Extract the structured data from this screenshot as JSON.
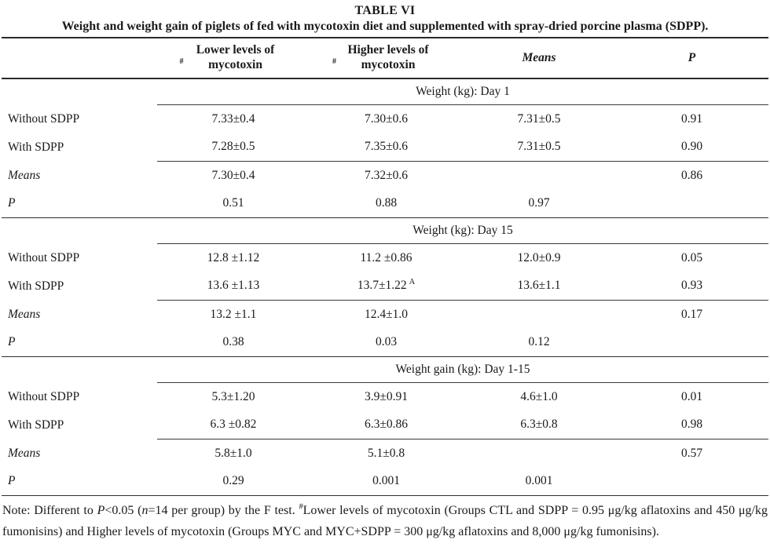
{
  "page": {
    "title": "TABLE VI",
    "subtitle": "Weight and weight gain of piglets of fed with mycotoxin diet and supplemented with spray-dried porcine plasma (SDPP)."
  },
  "header": {
    "hash": "#",
    "col_lower": "Lower levels of mycotoxin",
    "col_higher": "Higher levels of mycotoxin",
    "col_means": "Means",
    "col_p": "P"
  },
  "sections": [
    {
      "header": "Weight (kg): Day 1",
      "rows": [
        {
          "label": "Without SDPP",
          "cells": [
            "7.33±0.4",
            "7.30±0.6",
            "7.31±0.5",
            "0.91"
          ]
        },
        {
          "label": "With SDPP",
          "cells": [
            "7.28±0.5",
            "7.35±0.6",
            "7.31±0.5",
            "0.90"
          ]
        },
        {
          "label": "Means",
          "cells": [
            "7.30±0.4",
            "7.32±0.6",
            "",
            "0.86"
          ]
        },
        {
          "label": "P",
          "cells": [
            "0.51",
            "0.88",
            "0.97",
            ""
          ]
        }
      ]
    },
    {
      "header": "Weight (kg): Day 15",
      "rows": [
        {
          "label": "Without SDPP",
          "cells": [
            "12.8 ±1.12",
            "11.2 ±0.86",
            "12.0±0.9",
            "0.05"
          ]
        },
        {
          "label": "With SDPP",
          "cells": [
            "13.6 ±1.13",
            "13.7±1.22",
            "13.6±1.1",
            "0.93"
          ],
          "sup": "A"
        },
        {
          "label": "Means",
          "cells": [
            "13.2 ±1.1",
            "12.4±1.0",
            "",
            "0.17"
          ]
        },
        {
          "label": "P",
          "cells": [
            "0.38",
            "0.03",
            "0.12",
            ""
          ]
        }
      ]
    },
    {
      "header": "Weight gain (kg): Day 1-15",
      "rows": [
        {
          "label": "Without SDPP",
          "cells": [
            "5.3±1.20",
            "3.9±0.91",
            "4.6±1.0",
            "0.01"
          ]
        },
        {
          "label": "With SDPP",
          "cells": [
            "6.3 ±0.82",
            "6.3±0.86",
            "6.3±0.8",
            "0.98"
          ]
        },
        {
          "label": "Means",
          "cells": [
            "5.8±1.0",
            "5.1±0.8",
            "",
            "0.57"
          ]
        },
        {
          "label": "P",
          "cells": [
            "0.29",
            "0.001",
            "0.001",
            ""
          ]
        }
      ]
    }
  ],
  "note": {
    "s1": "Note: Different to ",
    "s2": "P",
    "s3": "<0.05 (",
    "s4": "n",
    "s5": "=14 per group) by the F test. ",
    "s6": "#",
    "s7": "Lower levels of mycotoxin (Groups CTL and SDPP = 0.95 μg/kg aflatoxins and 450 μg/kg fumonisins) and Higher levels of mycotoxin (Groups MYC and MYC+SDPP = 300 μg/kg aflatoxins and 8,000 μg/kg fumonisins)."
  },
  "colors": {
    "text": "#1a1a1a",
    "rule": "#333333",
    "background": "#ffffff"
  }
}
